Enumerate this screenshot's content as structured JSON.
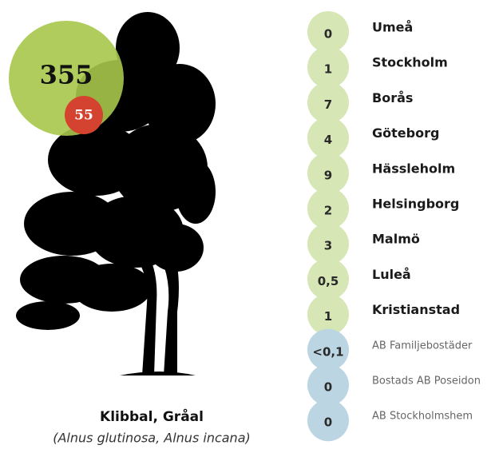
{
  "tree": {
    "big_value": "355",
    "small_value": "55",
    "name": "Klibbal, Gråal",
    "latin": "(Alnus glutinosa, Alnus incana)"
  },
  "cities": [
    {
      "value": "0",
      "name": "Umeå"
    },
    {
      "value": "1",
      "name": "Stockholm"
    },
    {
      "value": "7",
      "name": "Borås"
    },
    {
      "value": "4",
      "name": "Göteborg"
    },
    {
      "value": "9",
      "name": "Hässleholm"
    },
    {
      "value": "2",
      "name": "Helsingborg"
    },
    {
      "value": "3",
      "name": "Malmö"
    },
    {
      "value": "0,5",
      "name": "Luleå"
    },
    {
      "value": "1",
      "name": "Kristianstad"
    }
  ],
  "companies": [
    {
      "value": "<0,1",
      "name": "AB Familjebostäder"
    },
    {
      "value": "0",
      "name": "Bostads AB Poseidon"
    },
    {
      "value": "0",
      "name": "AB Stockholmshem"
    }
  ]
}
